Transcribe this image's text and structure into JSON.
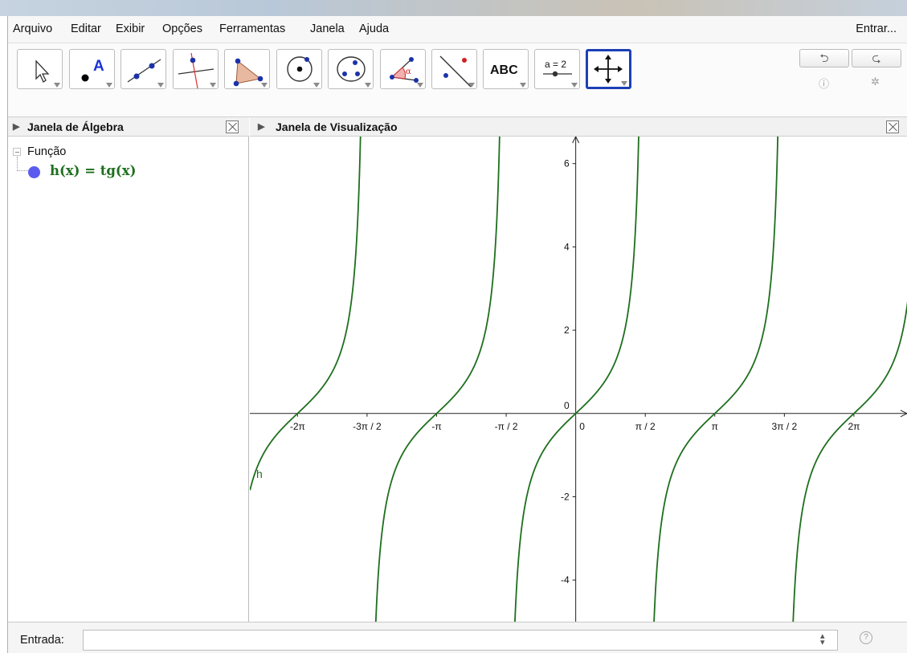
{
  "menubar": {
    "items": [
      "Arquivo",
      "Editar",
      "Exibir",
      "Opções",
      "Ferramentas",
      "Janela",
      "Ajuda"
    ],
    "signin": "Entrar..."
  },
  "toolbar": {
    "tools": [
      "move-tool",
      "point-tool",
      "line-tool",
      "perpendicular-line-tool",
      "polygon-tool",
      "circle-center-tool",
      "conic-tool",
      "angle-tool",
      "reflect-tool",
      "text-tool",
      "slider-tool",
      "move-graphics-view-tool"
    ],
    "text_tool_label": "ABC",
    "slider_tool_label": "a = 2",
    "undo_icon": "undo-icon",
    "redo_icon": "redo-icon",
    "help_icon": "help-icon",
    "settings_icon": "gear-icon"
  },
  "algebra": {
    "title": "Janela de Álgebra",
    "category": "Função",
    "object": {
      "definition": "h(x) = tg(x)",
      "color": "#1e6f1e",
      "dot_color": "#5b5bf0"
    }
  },
  "graphics": {
    "title": "Janela de Visualização",
    "function_label": "h",
    "curve_color": "#1e6f1e"
  },
  "chart_data": {
    "type": "line",
    "function": "tan",
    "series": [
      {
        "name": "h",
        "expression": "tg(x)",
        "color": "#1e6f1e"
      }
    ],
    "xlim": [
      -7.36,
      7.5
    ],
    "ylim": [
      -5,
      6.65
    ],
    "x_ticks": [
      {
        "value": -6.2832,
        "label": "-2π"
      },
      {
        "value": -4.7124,
        "label": "-3π / 2"
      },
      {
        "value": -3.1416,
        "label": "-π"
      },
      {
        "value": -1.5708,
        "label": "-π / 2"
      },
      {
        "value": 0,
        "label": "0"
      },
      {
        "value": 1.5708,
        "label": "π / 2"
      },
      {
        "value": 3.1416,
        "label": "π"
      },
      {
        "value": 4.7124,
        "label": "3π / 2"
      },
      {
        "value": 6.2832,
        "label": "2π"
      }
    ],
    "y_ticks": [
      {
        "value": -4,
        "label": "-4"
      },
      {
        "value": -2,
        "label": "-2"
      },
      {
        "value": 0,
        "label": "0"
      },
      {
        "value": 2,
        "label": "2"
      },
      {
        "value": 4,
        "label": "4"
      },
      {
        "value": 6,
        "label": "6"
      }
    ],
    "grid": false
  },
  "input": {
    "label": "Entrada:",
    "value": "",
    "arrows": "▲▼",
    "help_icon": "help-icon"
  }
}
